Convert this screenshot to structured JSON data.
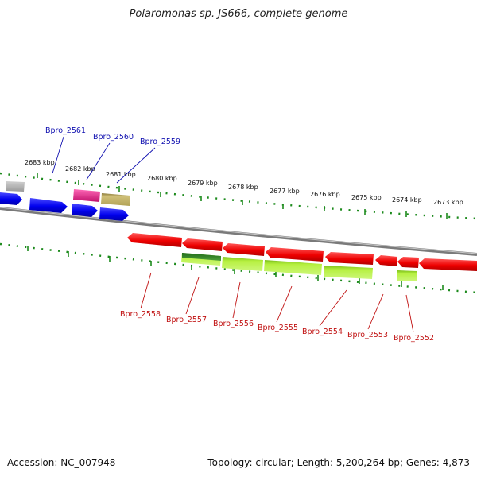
{
  "header": {
    "title": "Polaromonas sp. JS666, complete genome"
  },
  "footer": {
    "accession": "Accession: NC_007948",
    "summary": "Topology: circular; Length: 5,200,264 bp; Genes: 4,873"
  },
  "scale": {
    "labels": [
      "2683 kbp",
      "2682 kbp",
      "2681 kbp",
      "2680 kbp",
      "2679 kbp",
      "2678 kbp",
      "2677 kbp",
      "2676 kbp",
      "2675 kbp",
      "2674 kbp",
      "2673 kbp"
    ]
  },
  "genes_top": [
    "Bpro_2561",
    "Bpro_2560",
    "Bpro_2559"
  ],
  "genes_bottom": [
    "Bpro_2558",
    "Bpro_2557",
    "Bpro_2556",
    "Bpro_2555",
    "Bpro_2554",
    "Bpro_2553",
    "Bpro_2552"
  ],
  "colors": {
    "backbone": "#8a8a8a",
    "forward_strand": "#0000ee",
    "reverse_strand": "#ee0000",
    "ticks": "#1c8a1c",
    "top_label": "#1010b0",
    "bottom_label": "#c01010",
    "feature_gray": "#b4b4b4",
    "feature_magenta": "#e0208c",
    "feature_olive": "#bfae5c",
    "feature_darkgreen": "#3a8a2a",
    "feature_lime": "#a8e830"
  }
}
